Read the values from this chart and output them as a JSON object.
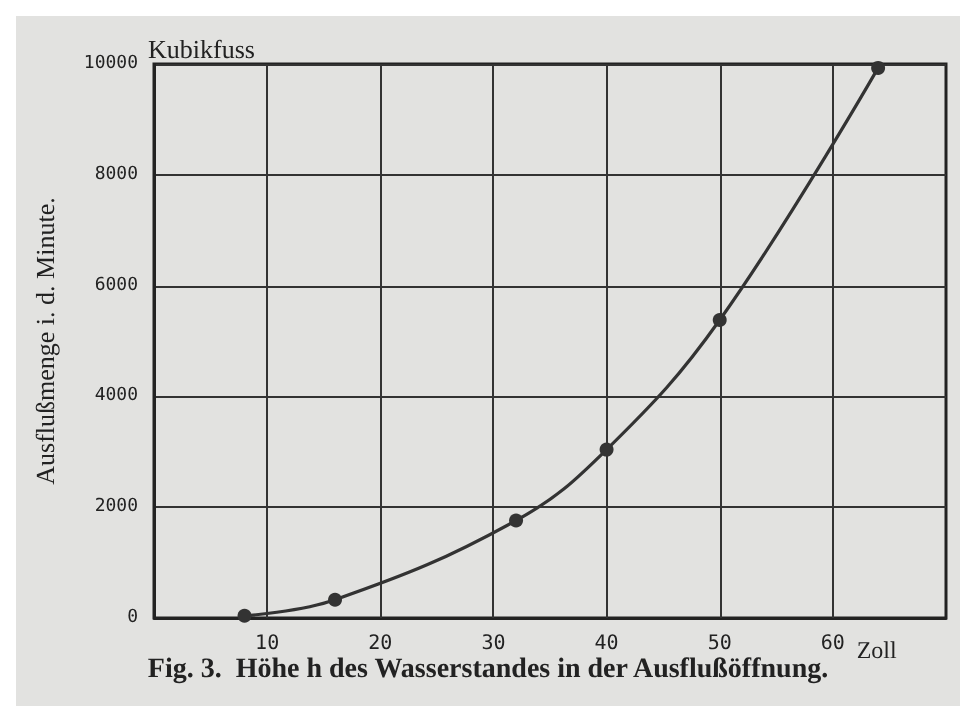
{
  "chart_data": {
    "type": "line",
    "title": "Fig. 3.  Höhe h des Wasserstandes in der Ausflußöffnung.",
    "xlabel": "Zoll",
    "ylabel": "Ausflußmenge i. d. Minute.",
    "annotations": [
      "Kubikfuss"
    ],
    "x": [
      8,
      16,
      32,
      40,
      50,
      64
    ],
    "series": [
      {
        "color": "#333333",
        "values": [
          40,
          330,
          1760,
          3040,
          5380,
          9930
        ]
      }
    ],
    "xlim": [
      0,
      70
    ],
    "xticks": [
      10,
      20,
      30,
      40,
      50,
      60
    ],
    "ylim": [
      0,
      10000
    ],
    "yticks": [
      0,
      2000,
      4000,
      6000,
      8000,
      10000
    ],
    "grid": true,
    "marker": "circle",
    "line_style": "solid"
  }
}
